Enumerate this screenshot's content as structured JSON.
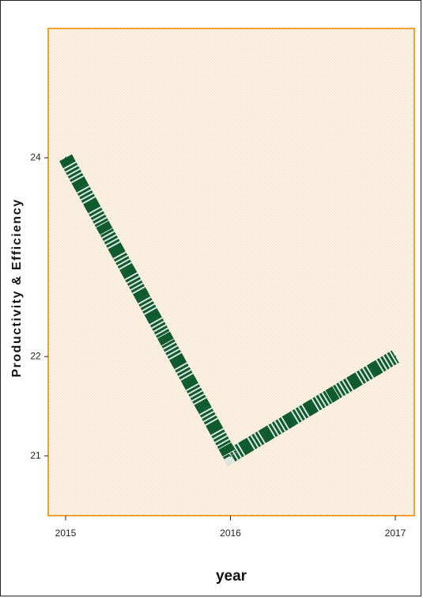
{
  "chart_data": {
    "type": "line",
    "title": "",
    "xlabel": "year",
    "ylabel": "Productivity & Efficiency",
    "x": [
      "2015",
      "2016",
      "2017"
    ],
    "series": [
      {
        "values": [
          24.0,
          21.0,
          22.0
        ]
      }
    ],
    "xticks": [
      "2015",
      "2016",
      "2017"
    ],
    "yticks": [
      "21",
      "22",
      "24"
    ],
    "ylim": [
      20.4,
      25.3
    ],
    "grid": false,
    "legend": "none",
    "colors": {
      "line": "#0f5a2e",
      "line_stripe": "#ffffff",
      "plot_background": "#fdf7ee",
      "plot_dots": "#f4cc9f",
      "plot_border": "#f0a030"
    }
  }
}
